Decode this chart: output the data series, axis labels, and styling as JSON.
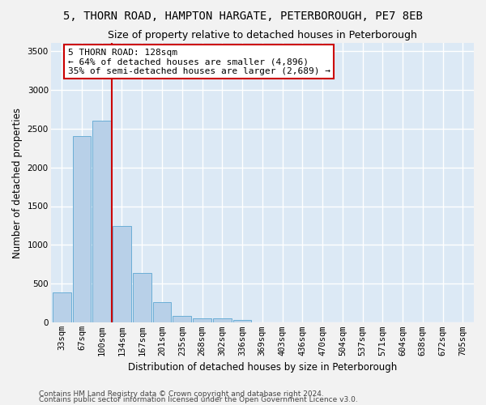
{
  "title": "5, THORN ROAD, HAMPTON HARGATE, PETERBOROUGH, PE7 8EB",
  "subtitle": "Size of property relative to detached houses in Peterborough",
  "xlabel": "Distribution of detached houses by size in Peterborough",
  "ylabel": "Number of detached properties",
  "footnote1": "Contains HM Land Registry data © Crown copyright and database right 2024.",
  "footnote2": "Contains public sector information licensed under the Open Government Licence v3.0.",
  "categories": [
    "33sqm",
    "67sqm",
    "100sqm",
    "134sqm",
    "167sqm",
    "201sqm",
    "235sqm",
    "268sqm",
    "302sqm",
    "336sqm",
    "369sqm",
    "403sqm",
    "436sqm",
    "470sqm",
    "504sqm",
    "537sqm",
    "571sqm",
    "604sqm",
    "638sqm",
    "672sqm",
    "705sqm"
  ],
  "values": [
    390,
    2400,
    2600,
    1240,
    640,
    260,
    90,
    60,
    60,
    40,
    0,
    0,
    0,
    0,
    0,
    0,
    0,
    0,
    0,
    0,
    0
  ],
  "bar_color": "#b8d0e8",
  "bar_edge_color": "#6baed6",
  "property_label": "5 THORN ROAD: 128sqm",
  "annotation_line1": "← 64% of detached houses are smaller (4,896)",
  "annotation_line2": "35% of semi-detached houses are larger (2,689) →",
  "vline_color": "#cc0000",
  "vline_position": 2.5,
  "ylim": [
    0,
    3600
  ],
  "yticks": [
    0,
    500,
    1000,
    1500,
    2000,
    2500,
    3000,
    3500
  ],
  "background_color": "#dce9f5",
  "grid_color": "#ffffff",
  "fig_background": "#f2f2f2",
  "annotation_box_color": "#ffffff",
  "annotation_box_edge": "#cc0000",
  "title_fontsize": 10,
  "subtitle_fontsize": 9,
  "axis_label_fontsize": 8.5,
  "tick_fontsize": 7.5,
  "footnote_fontsize": 6.5,
  "annotation_fontsize": 8.0
}
